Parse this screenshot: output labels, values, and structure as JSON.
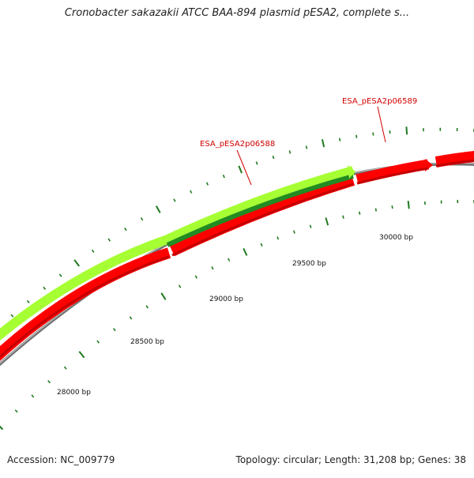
{
  "title": "Cronobacter sakazakii ATCC BAA-894 plasmid pESA2, complete s...",
  "footer": {
    "accession": "Accession: NC_009779",
    "summary": "Topology: circular; Length: 31,208 bp; Genes: 38"
  },
  "colors": {
    "reverse_strand": "#ff0000",
    "forward_outer": "#a6ff33",
    "forward_inner": "#228b22",
    "backbone": "#8c8c8c",
    "tick": "#1f7a1f",
    "gene_label": "#d20000"
  },
  "scale_labels": [
    "28000 bp",
    "28500 bp",
    "29000 bp",
    "29500 bp",
    "30000 bp"
  ],
  "gene_labels": [
    "ESA_pESA2p06588",
    "ESA_pESA2p06589"
  ]
}
